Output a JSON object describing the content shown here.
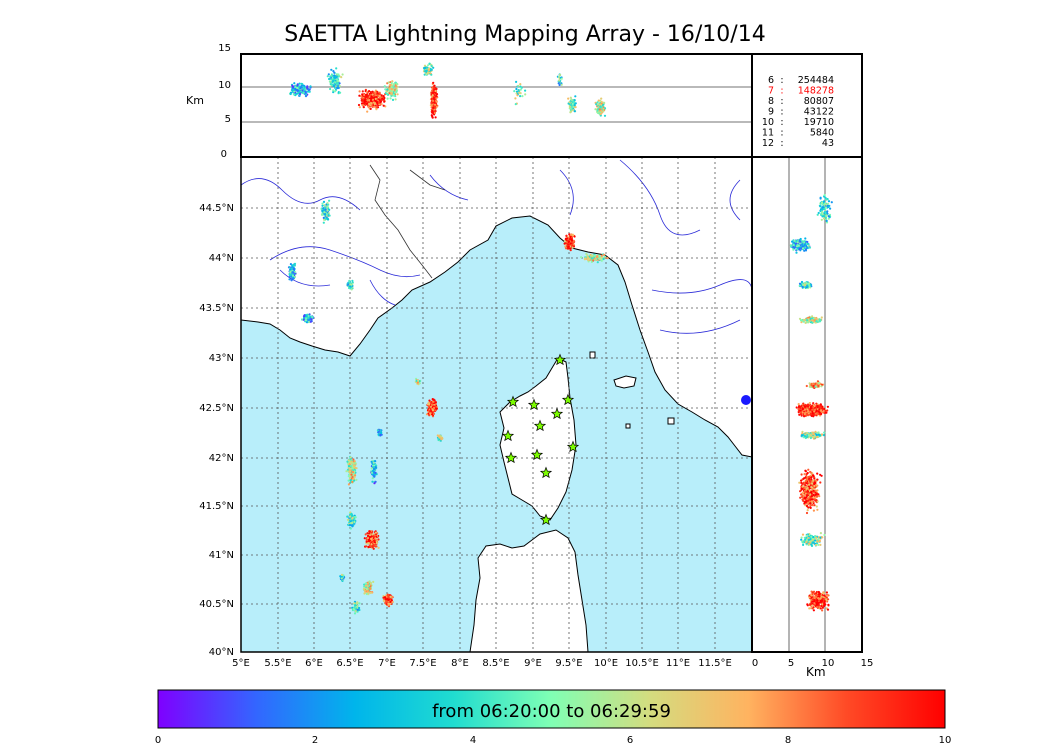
{
  "title": "SAETTA Lightning Mapping Array - 16/10/14",
  "altitude_panel": {
    "unit_label": "Km",
    "ticks": [
      "15",
      "10",
      "5",
      "0"
    ]
  },
  "side_panel": {
    "unit_label": "Km",
    "ticks": [
      "0",
      "5",
      "10",
      "15"
    ]
  },
  "map": {
    "lon_labels": [
      "5°E",
      "5.5°E",
      "6°E",
      "6.5°E",
      "7°E",
      "7.5°E",
      "8°E",
      "8.5°E",
      "9°E",
      "9.5°E",
      "10°E",
      "10.5°E",
      "11°E",
      "11.5°E"
    ],
    "lat_labels": [
      "44.5°N",
      "44°N",
      "43.5°N",
      "43°N",
      "42.5°N",
      "42°N",
      "41.5°N",
      "41°N",
      "40.5°N",
      "40°N"
    ],
    "sea_color": "#b8eefa",
    "station_symbol": "star",
    "station_color": "#7cfc00"
  },
  "legend": {
    "rows": [
      {
        "key": "6",
        "sep": ":",
        "value": "254484",
        "highlight": false
      },
      {
        "key": "7",
        "sep": ":",
        "value": "148278",
        "highlight": true
      },
      {
        "key": "8",
        "sep": ":",
        "value": "80807",
        "highlight": false
      },
      {
        "key": "9",
        "sep": ":",
        "value": "43122",
        "highlight": false
      },
      {
        "key": "10",
        "sep": ":",
        "value": "19710",
        "highlight": false
      },
      {
        "key": "11",
        "sep": ":",
        "value": "5840",
        "highlight": false
      },
      {
        "key": "12",
        "sep": ":",
        "value": "43",
        "highlight": false
      }
    ],
    "highlight_color": "#ff0000"
  },
  "colorbar": {
    "label": "from 06:20:00 to 06:29:59",
    "ticks": [
      "0",
      "2",
      "4",
      "6",
      "8",
      "10"
    ],
    "range": [
      0,
      10
    ],
    "colormap": [
      "#7f00ff",
      "#3366ff",
      "#00b5eb",
      "#20dcd0",
      "#80ffb4",
      "#d4dc7f",
      "#ffb360",
      "#ff4a26",
      "#ff0000"
    ]
  }
}
